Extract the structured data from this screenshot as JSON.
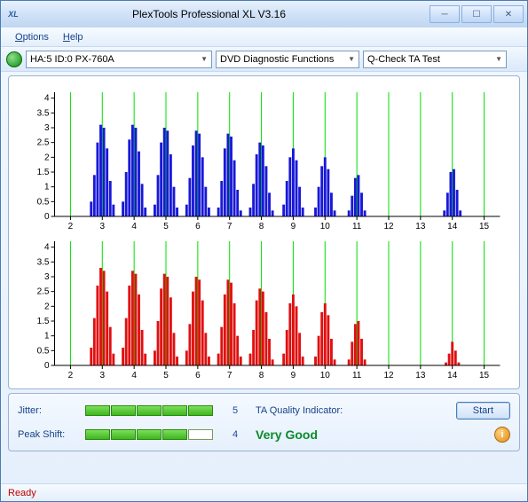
{
  "window": {
    "title": "PlexTools Professional XL V3.16",
    "icon_label": "XL"
  },
  "menu": {
    "options": "Options",
    "help": "Help"
  },
  "toolbar": {
    "drive": "HA:5 ID:0  PX-760A",
    "function": "DVD Diagnostic Functions",
    "test": "Q-Check TA Test"
  },
  "chart_top": {
    "color": "#1818d8",
    "bg": "#ffffff",
    "grid_color": "#00e000",
    "axis_color": "#000000",
    "xlim": [
      1.5,
      15.5
    ],
    "ylim": [
      0,
      4.2
    ],
    "xticks": [
      2,
      3,
      4,
      5,
      6,
      7,
      8,
      9,
      10,
      11,
      12,
      13,
      14,
      15
    ],
    "yticks": [
      0,
      0.5,
      1,
      1.5,
      2,
      2.5,
      3,
      3.5,
      4
    ],
    "vgrid": [
      2,
      3,
      4,
      5,
      6,
      7,
      8,
      9,
      10,
      11,
      12,
      13,
      14,
      15
    ],
    "clusters": [
      {
        "x": 3,
        "offsets": [
          -0.35,
          -0.25,
          -0.15,
          -0.05,
          0.05,
          0.15,
          0.25,
          0.35
        ],
        "heights": [
          0.5,
          1.4,
          2.5,
          3.1,
          3.0,
          2.3,
          1.2,
          0.4
        ]
      },
      {
        "x": 4,
        "offsets": [
          -0.35,
          -0.25,
          -0.15,
          -0.05,
          0.05,
          0.15,
          0.25,
          0.35
        ],
        "heights": [
          0.5,
          1.5,
          2.6,
          3.1,
          3.0,
          2.2,
          1.1,
          0.3
        ]
      },
      {
        "x": 5,
        "offsets": [
          -0.35,
          -0.25,
          -0.15,
          -0.05,
          0.05,
          0.15,
          0.25,
          0.35
        ],
        "heights": [
          0.4,
          1.4,
          2.5,
          3.0,
          2.9,
          2.1,
          1.0,
          0.3
        ]
      },
      {
        "x": 6,
        "offsets": [
          -0.35,
          -0.25,
          -0.15,
          -0.05,
          0.05,
          0.15,
          0.25,
          0.35
        ],
        "heights": [
          0.4,
          1.3,
          2.4,
          2.9,
          2.8,
          2.0,
          1.0,
          0.3
        ]
      },
      {
        "x": 7,
        "offsets": [
          -0.35,
          -0.25,
          -0.15,
          -0.05,
          0.05,
          0.15,
          0.25,
          0.35
        ],
        "heights": [
          0.3,
          1.2,
          2.3,
          2.8,
          2.7,
          1.9,
          0.9,
          0.2
        ]
      },
      {
        "x": 8,
        "offsets": [
          -0.35,
          -0.25,
          -0.15,
          -0.05,
          0.05,
          0.15,
          0.25,
          0.35
        ],
        "heights": [
          0.3,
          1.1,
          2.1,
          2.5,
          2.4,
          1.7,
          0.8,
          0.2
        ]
      },
      {
        "x": 9,
        "offsets": [
          -0.3,
          -0.2,
          -0.1,
          0,
          0.1,
          0.2,
          0.3
        ],
        "heights": [
          0.4,
          1.2,
          2.0,
          2.3,
          1.9,
          1.0,
          0.3
        ]
      },
      {
        "x": 10,
        "offsets": [
          -0.3,
          -0.2,
          -0.1,
          0,
          0.1,
          0.2,
          0.3
        ],
        "heights": [
          0.3,
          1.0,
          1.7,
          2.0,
          1.6,
          0.8,
          0.2
        ]
      },
      {
        "x": 11,
        "offsets": [
          -0.25,
          -0.15,
          -0.05,
          0.05,
          0.15,
          0.25
        ],
        "heights": [
          0.2,
          0.7,
          1.3,
          1.4,
          0.8,
          0.2
        ]
      },
      {
        "x": 14,
        "offsets": [
          -0.25,
          -0.15,
          -0.05,
          0.05,
          0.15,
          0.25
        ],
        "heights": [
          0.2,
          0.8,
          1.5,
          1.6,
          0.9,
          0.2
        ]
      }
    ]
  },
  "chart_bottom": {
    "color": "#e01010",
    "bg": "#ffffff",
    "grid_color": "#00e000",
    "axis_color": "#000000",
    "xlim": [
      1.5,
      15.5
    ],
    "ylim": [
      0,
      4.2
    ],
    "xticks": [
      2,
      3,
      4,
      5,
      6,
      7,
      8,
      9,
      10,
      11,
      12,
      13,
      14,
      15
    ],
    "yticks": [
      0,
      0.5,
      1,
      1.5,
      2,
      2.5,
      3,
      3.5,
      4
    ],
    "vgrid": [
      2,
      3,
      4,
      5,
      6,
      7,
      8,
      9,
      10,
      11,
      12,
      13,
      14,
      15
    ],
    "clusters": [
      {
        "x": 3,
        "offsets": [
          -0.35,
          -0.25,
          -0.15,
          -0.05,
          0.05,
          0.15,
          0.25,
          0.35
        ],
        "heights": [
          0.6,
          1.6,
          2.7,
          3.3,
          3.2,
          2.5,
          1.3,
          0.4
        ]
      },
      {
        "x": 4,
        "offsets": [
          -0.35,
          -0.25,
          -0.15,
          -0.05,
          0.05,
          0.15,
          0.25,
          0.35
        ],
        "heights": [
          0.6,
          1.6,
          2.7,
          3.2,
          3.1,
          2.4,
          1.2,
          0.4
        ]
      },
      {
        "x": 5,
        "offsets": [
          -0.35,
          -0.25,
          -0.15,
          -0.05,
          0.05,
          0.15,
          0.25,
          0.35
        ],
        "heights": [
          0.5,
          1.5,
          2.6,
          3.1,
          3.0,
          2.3,
          1.1,
          0.3
        ]
      },
      {
        "x": 6,
        "offsets": [
          -0.35,
          -0.25,
          -0.15,
          -0.05,
          0.05,
          0.15,
          0.25,
          0.35
        ],
        "heights": [
          0.5,
          1.4,
          2.5,
          3.0,
          2.9,
          2.2,
          1.1,
          0.3
        ]
      },
      {
        "x": 7,
        "offsets": [
          -0.35,
          -0.25,
          -0.15,
          -0.05,
          0.05,
          0.15,
          0.25,
          0.35
        ],
        "heights": [
          0.4,
          1.3,
          2.4,
          2.9,
          2.8,
          2.1,
          1.0,
          0.3
        ]
      },
      {
        "x": 8,
        "offsets": [
          -0.35,
          -0.25,
          -0.15,
          -0.05,
          0.05,
          0.15,
          0.25,
          0.35
        ],
        "heights": [
          0.4,
          1.2,
          2.2,
          2.6,
          2.5,
          1.8,
          0.9,
          0.2
        ]
      },
      {
        "x": 9,
        "offsets": [
          -0.3,
          -0.2,
          -0.1,
          0,
          0.1,
          0.2,
          0.3
        ],
        "heights": [
          0.4,
          1.2,
          2.1,
          2.4,
          2.0,
          1.1,
          0.3
        ]
      },
      {
        "x": 10,
        "offsets": [
          -0.3,
          -0.2,
          -0.1,
          0,
          0.1,
          0.2,
          0.3
        ],
        "heights": [
          0.3,
          1.0,
          1.8,
          2.1,
          1.7,
          0.9,
          0.2
        ]
      },
      {
        "x": 11,
        "offsets": [
          -0.25,
          -0.15,
          -0.05,
          0.05,
          0.15,
          0.25
        ],
        "heights": [
          0.2,
          0.8,
          1.4,
          1.5,
          0.9,
          0.2
        ]
      },
      {
        "x": 14,
        "offsets": [
          -0.2,
          -0.1,
          0,
          0.1,
          0.2
        ],
        "heights": [
          0.1,
          0.4,
          0.8,
          0.5,
          0.1
        ]
      }
    ]
  },
  "metrics": {
    "jitter_label": "Jitter:",
    "jitter_filled": 5,
    "jitter_total": 5,
    "jitter_value": "5",
    "peakshift_label": "Peak Shift:",
    "peakshift_filled": 4,
    "peakshift_total": 5,
    "peakshift_value": "4",
    "taq_label": "TA Quality Indicator:",
    "taq_value": "Very Good",
    "start_label": "Start"
  },
  "status": {
    "text": "Ready"
  }
}
